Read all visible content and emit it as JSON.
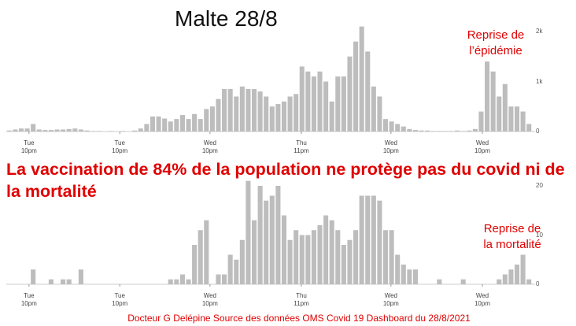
{
  "title": "Malte 28/8",
  "headline": "La vaccination de 84% de la population ne protège pas du covid ni de la mortalité",
  "footer": "Docteur G Delépine Source des données OMS Covid 19 Dashboard du 28/8/2021",
  "chart_data": [
    {
      "type": "bar",
      "color": "#bdbdbd",
      "annotation": "Reprise de\nl’épidémie",
      "x": [
        0,
        1,
        2,
        3,
        4,
        5,
        6,
        7,
        8,
        9,
        10,
        11,
        12,
        13,
        14,
        15,
        16,
        17,
        18,
        19,
        20,
        21,
        22,
        23,
        24,
        25,
        26,
        27,
        28,
        29,
        30,
        31,
        32,
        33,
        34,
        35,
        36,
        37,
        38,
        39,
        40,
        41,
        42,
        43,
        44,
        45,
        46,
        47,
        48,
        49,
        50,
        51,
        52,
        53,
        54,
        55,
        56,
        57,
        58,
        59,
        60,
        61,
        62,
        63,
        64,
        65,
        66,
        67,
        68,
        69,
        70,
        71,
        72,
        73,
        74,
        75,
        76,
        77,
        78,
        79,
        80,
        81,
        82,
        83,
        84,
        85,
        86,
        87
      ],
      "values": [
        20,
        40,
        60,
        60,
        150,
        40,
        30,
        30,
        40,
        40,
        50,
        60,
        40,
        20,
        10,
        10,
        0,
        10,
        0,
        10,
        0,
        20,
        60,
        150,
        300,
        300,
        260,
        200,
        250,
        330,
        250,
        350,
        250,
        450,
        500,
        650,
        850,
        850,
        700,
        900,
        850,
        850,
        800,
        700,
        500,
        550,
        600,
        700,
        750,
        1300,
        1200,
        1100,
        1200,
        1000,
        600,
        1100,
        1100,
        1500,
        1800,
        2100,
        1600,
        900,
        700,
        250,
        200,
        150,
        100,
        50,
        30,
        20,
        20,
        10,
        10,
        10,
        10,
        20,
        10,
        20,
        50,
        400,
        1400,
        1200,
        700,
        950,
        500,
        500,
        400,
        150
      ],
      "xlim": [
        -0.5,
        87.5
      ],
      "xticks": [
        {
          "value": 3.3,
          "label": "Tue\n10pm"
        },
        {
          "value": 18.5,
          "label": "Tue\n10pm"
        },
        {
          "value": 33.6,
          "label": "Wed\n10pm"
        },
        {
          "value": 48.9,
          "label": "Thu\n11pm"
        },
        {
          "value": 63.9,
          "label": "Wed\n10pm"
        },
        {
          "value": 79.2,
          "label": "Wed\n10pm"
        }
      ],
      "ylim": [
        0,
        2200
      ],
      "yticks": [
        0,
        {
          "value": 1000,
          "label": "1k"
        },
        {
          "value": 2000,
          "label": "2k"
        }
      ]
    },
    {
      "type": "bar",
      "color": "#bdbdbd",
      "annotation": "Reprise de\nla mortalité",
      "x": [
        0,
        1,
        2,
        3,
        4,
        5,
        6,
        7,
        8,
        9,
        10,
        11,
        12,
        13,
        14,
        15,
        16,
        17,
        18,
        19,
        20,
        21,
        22,
        23,
        24,
        25,
        26,
        27,
        28,
        29,
        30,
        31,
        32,
        33,
        34,
        35,
        36,
        37,
        38,
        39,
        40,
        41,
        42,
        43,
        44,
        45,
        46,
        47,
        48,
        49,
        50,
        51,
        52,
        53,
        54,
        55,
        56,
        57,
        58,
        59,
        60,
        61,
        62,
        63,
        64,
        65,
        66,
        67,
        68,
        69,
        70,
        71,
        72,
        73,
        74,
        75,
        76,
        77,
        78,
        79,
        80,
        81,
        82,
        83,
        84,
        85,
        86,
        87
      ],
      "values": [
        0,
        0,
        0,
        0,
        3,
        0,
        0,
        1,
        0,
        1,
        1,
        0,
        3,
        0,
        0,
        0,
        0,
        0,
        0,
        0,
        0,
        0,
        0,
        0,
        0,
        0,
        0,
        1,
        1,
        2,
        1,
        8,
        11,
        13,
        0,
        2,
        2,
        6,
        5,
        9,
        21,
        13,
        20,
        17,
        18,
        20,
        14,
        9,
        11,
        10,
        10,
        11,
        12,
        14,
        13,
        11,
        8,
        9,
        11,
        18,
        18,
        18,
        17,
        11,
        11,
        6,
        4,
        3,
        3,
        0,
        0,
        0,
        1,
        0,
        0,
        0,
        1,
        0,
        0,
        0,
        0,
        0,
        1,
        2,
        3,
        4,
        6,
        1
      ],
      "xlim": [
        -0.5,
        87.5
      ],
      "xticks": [
        {
          "value": 3.3,
          "label": "Tue\n10pm"
        },
        {
          "value": 18.5,
          "label": "Tue\n10pm"
        },
        {
          "value": 33.6,
          "label": "Wed\n10pm"
        },
        {
          "value": 48.9,
          "label": "Thu\n11pm"
        },
        {
          "value": 63.9,
          "label": "Wed\n10pm"
        },
        {
          "value": 79.2,
          "label": "Wed\n10pm"
        }
      ],
      "ylim": [
        0,
        22
      ],
      "yticks": [
        0,
        10,
        20
      ]
    }
  ]
}
